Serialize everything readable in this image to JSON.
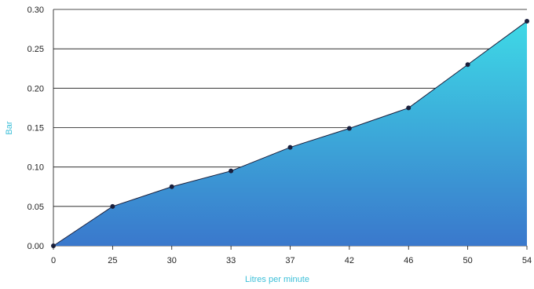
{
  "chart_data": {
    "type": "area",
    "x": [
      "0",
      "25",
      "30",
      "33",
      "37",
      "42",
      "46",
      "50",
      "54"
    ],
    "series": [
      {
        "values": [
          0.0,
          0.05,
          0.075,
          0.095,
          0.125,
          0.149,
          0.175,
          0.23,
          0.285
        ]
      }
    ],
    "title": "",
    "xlabel": "Litres per minute",
    "ylabel": "Bar",
    "ylim": [
      0,
      0.3
    ],
    "yticks": [
      "0.00",
      "0.05",
      "0.10",
      "0.15",
      "0.20",
      "0.25",
      "0.30"
    ],
    "grid": "horizontal",
    "legend": "none",
    "colors": {
      "area_top": "#3ed9e6",
      "area_bottom": "#3a78cc",
      "line": "#1a1f3c",
      "marker": "#1a1f3c",
      "grid": "#111111",
      "axis_title": "#3bbfd8"
    }
  }
}
